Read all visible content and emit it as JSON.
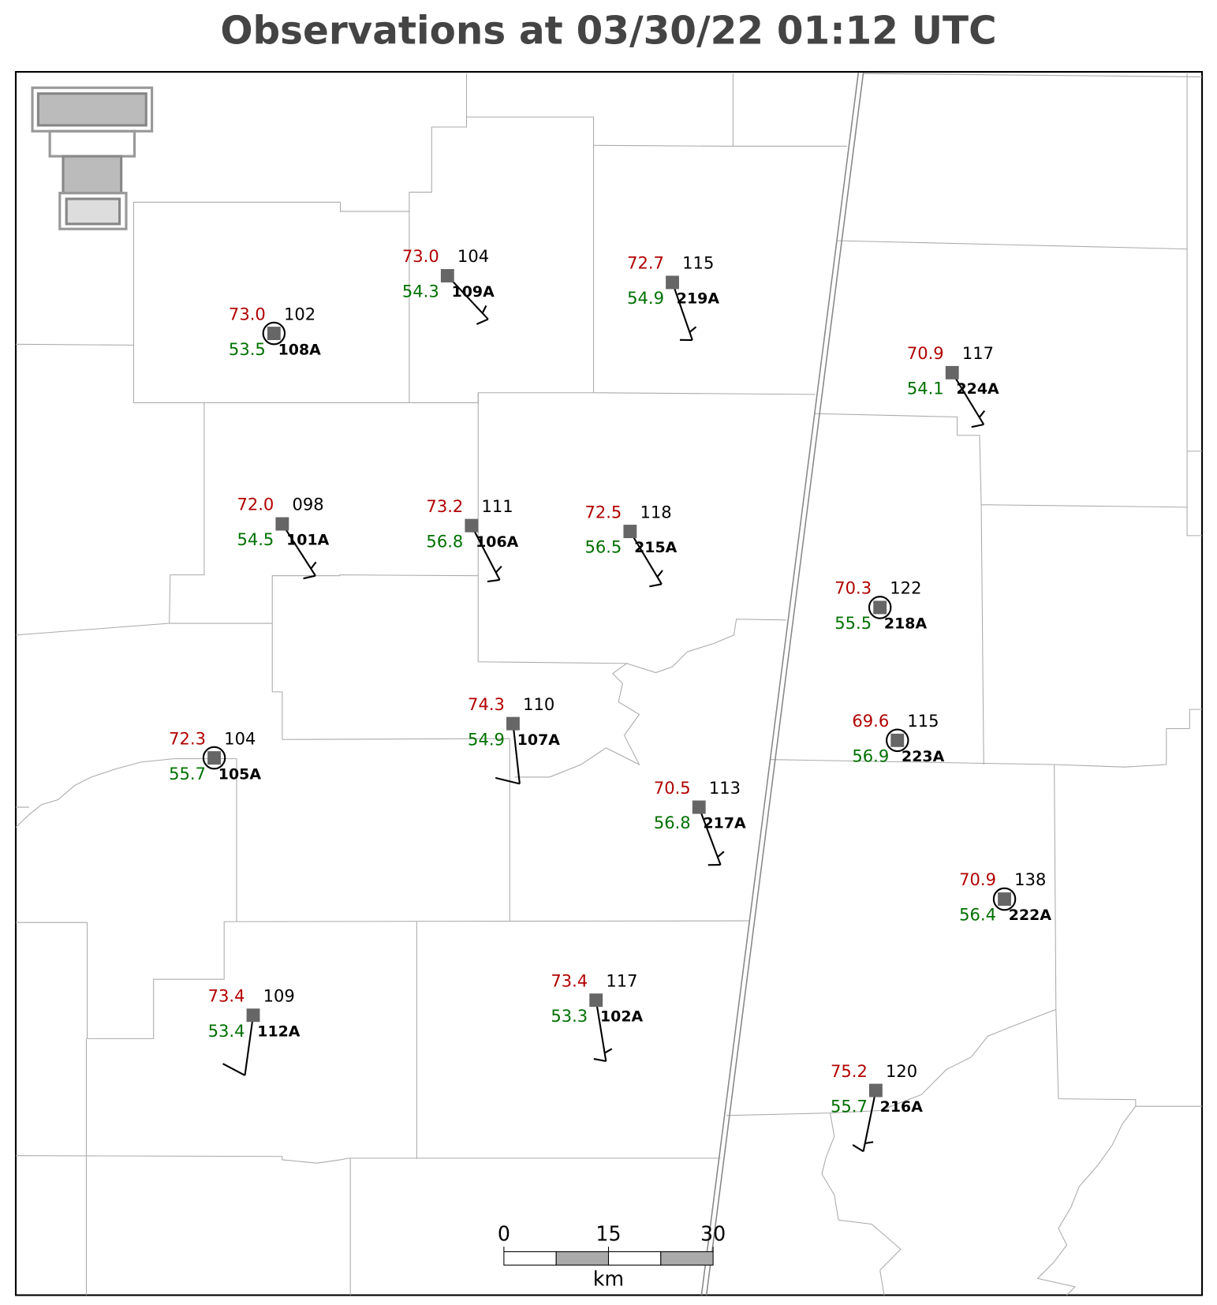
{
  "title": "Observations at 03/30/22 01:12 UTC",
  "stations": [
    {
      "id": "108A",
      "temperature": "73.0",
      "dewpoint": "53.5",
      "pressure": "102"
    },
    {
      "id": "109A",
      "temperature": "73.0",
      "dewpoint": "54.3",
      "pressure": "104"
    },
    {
      "id": "219A",
      "temperature": "72.7",
      "dewpoint": "54.9",
      "pressure": "115"
    },
    {
      "id": "224A",
      "temperature": "70.9",
      "dewpoint": "54.1",
      "pressure": "117"
    },
    {
      "id": "101A",
      "temperature": "72.0",
      "dewpoint": "54.5",
      "pressure": "098"
    },
    {
      "id": "106A",
      "temperature": "73.2",
      "dewpoint": "56.8",
      "pressure": "111"
    },
    {
      "id": "215A",
      "temperature": "72.5",
      "dewpoint": "56.5",
      "pressure": "118"
    },
    {
      "id": "218A",
      "temperature": "70.3",
      "dewpoint": "55.5",
      "pressure": "122"
    },
    {
      "id": "223A",
      "temperature": "69.6",
      "dewpoint": "56.9",
      "pressure": "115"
    },
    {
      "id": "105A",
      "temperature": "72.3",
      "dewpoint": "55.7",
      "pressure": "104"
    },
    {
      "id": "107A",
      "temperature": "74.3",
      "dewpoint": "54.9",
      "pressure": "110"
    },
    {
      "id": "217A",
      "temperature": "70.5",
      "dewpoint": "56.8",
      "pressure": "113"
    },
    {
      "id": "222A",
      "temperature": "70.9",
      "dewpoint": "56.4",
      "pressure": "138"
    },
    {
      "id": "112A",
      "temperature": "73.4",
      "dewpoint": "53.4",
      "pressure": "109"
    },
    {
      "id": "102A",
      "temperature": "73.4",
      "dewpoint": "53.3",
      "pressure": "117"
    },
    {
      "id": "216A",
      "temperature": "75.2",
      "dewpoint": "55.7",
      "pressure": "120"
    }
  ],
  "scale_bar": {
    "ticks": [
      0,
      15,
      30
    ],
    "unit": "km"
  }
}
